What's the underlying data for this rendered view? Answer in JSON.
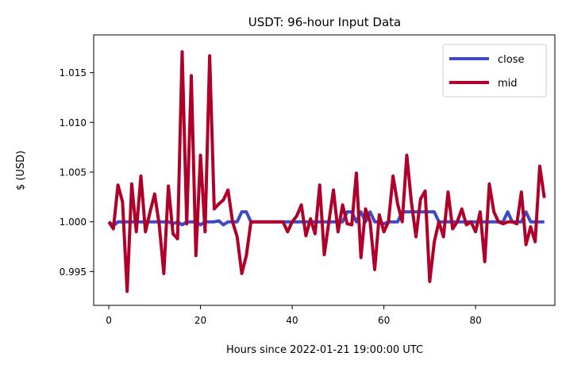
{
  "chart_data": {
    "type": "line",
    "title": "USDT: 96-hour Input Data",
    "xlabel": "Hours since 2022-01-21 19:00:00 UTC",
    "ylabel": "$ (USD)",
    "xlim": [
      -3.3,
      97.3
    ],
    "ylim": [
      0.9916,
      1.0188
    ],
    "xticks": [
      0,
      20,
      40,
      60,
      80
    ],
    "yticks": [
      0.995,
      1.0,
      1.005,
      1.01,
      1.015
    ],
    "ytick_labels": [
      "0.995",
      "1.000",
      "1.005",
      "1.010",
      "1.015"
    ],
    "grid": false,
    "legend_position": "top-right",
    "series": [
      {
        "name": "close",
        "color": "#3d4ac4",
        "values": [
          1.0,
          0.9996,
          1.0,
          1.0,
          1.0,
          1.0,
          1.0,
          1.0,
          1.0,
          1.0,
          1.0,
          1.0,
          1.0,
          1.0,
          0.9998,
          1.0,
          0.9997,
          1.0,
          1.0,
          1.0,
          0.9997,
          1.0,
          1.0,
          1.0,
          1.0001,
          0.9997,
          1.0,
          1.0,
          1.0,
          1.001,
          1.001,
          1.0,
          1.0,
          1.0,
          1.0,
          1.0,
          1.0,
          1.0,
          1.0,
          1.0,
          1.0,
          1.0,
          1.0,
          1.0,
          1.0,
          1.0,
          1.0,
          1.0,
          1.0,
          1.0,
          1.0,
          1.0,
          1.001,
          1.001,
          1.0,
          1.001,
          1.0,
          1.001,
          1.0,
          1.0,
          0.9998,
          1.0,
          1.0,
          1.0,
          1.001,
          1.001,
          1.001,
          1.001,
          1.001,
          1.001,
          1.001,
          1.001,
          1.0,
          1.0,
          1.0,
          1.0,
          1.0,
          1.0,
          1.0,
          1.0,
          1.0,
          1.0,
          1.0,
          1.0,
          1.0,
          1.0,
          1.0,
          1.001,
          1.0,
          1.0,
          1.0,
          1.001,
          1.0,
          1.0,
          1.0,
          1.0
        ]
      },
      {
        "name": "mid",
        "color": "#b0002a",
        "values": [
          1.0,
          0.9993,
          1.0037,
          1.002,
          0.993,
          1.0038,
          0.999,
          1.0046,
          0.999,
          1.001,
          1.0028,
          0.9997,
          0.9948,
          1.0036,
          0.9988,
          0.9983,
          1.0171,
          0.9998,
          1.0147,
          0.9966,
          1.0067,
          0.999,
          1.0167,
          1.0013,
          1.0018,
          1.0022,
          1.0032,
          1.0,
          0.9985,
          0.9948,
          0.9966,
          1.0,
          1.0,
          1.0,
          1.0,
          1.0,
          1.0,
          1.0,
          1.0,
          0.999,
          1.0,
          1.0006,
          1.0017,
          0.9986,
          1.0003,
          0.9988,
          1.0037,
          0.9967,
          1.0,
          1.0032,
          0.999,
          1.0017,
          0.9998,
          0.9997,
          1.0049,
          0.9964,
          1.0013,
          1.0,
          0.9952,
          1.0007,
          0.999,
          1.0,
          1.0046,
          1.0018,
          1.0,
          1.0067,
          1.002,
          0.9985,
          1.0023,
          1.0031,
          0.994,
          0.998,
          1.0,
          0.9985,
          1.003,
          0.9993,
          1.0,
          1.0013,
          0.9997,
          1.0,
          0.999,
          1.001,
          0.996,
          1.0038,
          1.001,
          1.0,
          0.9998,
          1.0,
          1.0,
          0.9998,
          1.003,
          0.9977,
          0.9995,
          0.998,
          1.0056,
          1.0024
        ]
      }
    ]
  }
}
